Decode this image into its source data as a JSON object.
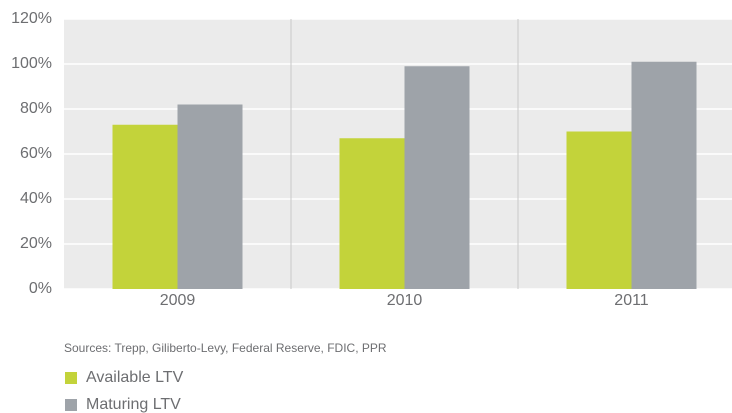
{
  "chart_data": {
    "type": "bar",
    "categories": [
      "2009",
      "2010",
      "2011"
    ],
    "series": [
      {
        "name": "Available LTV",
        "color": "#c3d33a",
        "values": [
          73,
          67,
          70
        ]
      },
      {
        "name": "Maturing LTV",
        "color": "#9ea3a9",
        "values": [
          82,
          99,
          101
        ]
      }
    ],
    "ylim": [
      0,
      120
    ],
    "yticks": [
      {
        "value": 0,
        "label": "0%"
      },
      {
        "value": 20,
        "label": "20%"
      },
      {
        "value": 40,
        "label": "40%"
      },
      {
        "value": 60,
        "label": "60%"
      },
      {
        "value": 80,
        "label": "80%"
      },
      {
        "value": 100,
        "label": "100%"
      },
      {
        "value": 120,
        "label": "120%"
      }
    ],
    "grid": true,
    "source": "Sources:  Trepp, Giliberto-Levy, Federal Reserve, FDIC, PPR",
    "legend": "bottom-left"
  }
}
